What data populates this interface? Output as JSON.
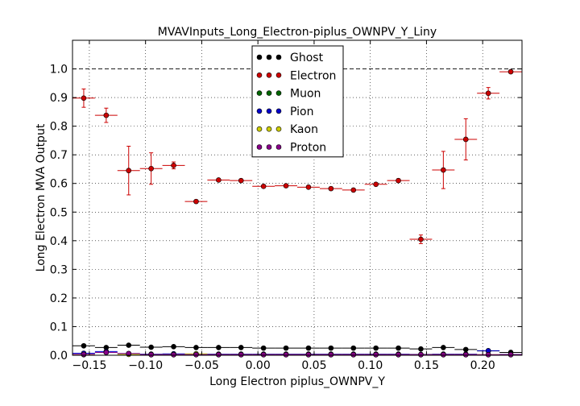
{
  "chart_data": {
    "type": "scatter",
    "title": "MVAVInputs_Long_Electron-piplus_OWNPV_Y_Liny",
    "xlabel": "Long Electron piplus_OWNPV_Y",
    "ylabel": "Long Electron MVA Output",
    "xlim": [
      -0.165,
      0.235
    ],
    "ylim": [
      0.0,
      1.1
    ],
    "xticks": [
      -0.15,
      -0.1,
      -0.05,
      0.0,
      0.05,
      0.1,
      0.15,
      0.2
    ],
    "xtick_labels": [
      "−0.15",
      "−0.10",
      "−0.05",
      "0.00",
      "0.05",
      "0.10",
      "0.15",
      "0.20"
    ],
    "yticks": [
      0.0,
      0.1,
      0.2,
      0.3,
      0.4,
      0.5,
      0.6,
      0.7,
      0.8,
      0.9,
      1.0
    ],
    "ytick_labels": [
      "0.0",
      "0.1",
      "0.2",
      "0.3",
      "0.4",
      "0.5",
      "0.6",
      "0.7",
      "0.8",
      "0.9",
      "1.0"
    ],
    "reference_line_y": 1.0,
    "grid": true,
    "legend_position": "top-center",
    "x": [
      -0.155,
      -0.135,
      -0.115,
      -0.095,
      -0.075,
      -0.055,
      -0.035,
      -0.015,
      0.005,
      0.025,
      0.045,
      0.065,
      0.085,
      0.105,
      0.125,
      0.145,
      0.165,
      0.185,
      0.205,
      0.225
    ],
    "x_half_width": 0.01,
    "series": [
      {
        "name": "Ghost",
        "color": "#000000",
        "values": [
          0.033,
          0.027,
          0.035,
          0.028,
          0.03,
          0.027,
          0.027,
          0.027,
          0.025,
          0.025,
          0.025,
          0.025,
          0.025,
          0.025,
          0.025,
          0.022,
          0.027,
          0.02,
          0.015,
          0.01
        ],
        "errors": [
          0.003,
          0.003,
          0.003,
          0.003,
          0.003,
          0.003,
          0.003,
          0.003,
          0.003,
          0.003,
          0.003,
          0.003,
          0.003,
          0.003,
          0.003,
          0.003,
          0.003,
          0.003,
          0.003,
          0.003
        ]
      },
      {
        "name": "Electron",
        "color": "#cc0000",
        "values": [
          0.898,
          0.838,
          0.645,
          0.652,
          0.663,
          0.537,
          0.612,
          0.61,
          0.59,
          0.592,
          0.587,
          0.582,
          0.577,
          0.597,
          0.61,
          0.405,
          0.647,
          0.754,
          0.915,
          0.99
        ],
        "errors": [
          0.032,
          0.025,
          0.085,
          0.055,
          0.012,
          0.005,
          0.005,
          0.005,
          0.005,
          0.005,
          0.005,
          0.005,
          0.005,
          0.005,
          0.006,
          0.015,
          0.065,
          0.072,
          0.02,
          0.005
        ]
      },
      {
        "name": "Muon",
        "color": "#006600",
        "values": [],
        "errors": []
      },
      {
        "name": "Pion",
        "color": "#0000cc",
        "values": [
          0.007,
          0.013,
          0.006,
          0.004,
          0.005,
          0.004,
          0.004,
          0.004,
          0.004,
          0.004,
          0.004,
          0.004,
          0.004,
          0.004,
          0.004,
          0.003,
          0.004,
          0.004,
          0.016,
          0.003
        ],
        "errors": [
          0.002,
          0.003,
          0.002,
          0.001,
          0.001,
          0.001,
          0.001,
          0.001,
          0.001,
          0.001,
          0.001,
          0.001,
          0.001,
          0.001,
          0.001,
          0.001,
          0.001,
          0.001,
          0.003,
          0.001
        ]
      },
      {
        "name": "Kaon",
        "color": "#cccc00",
        "values": [
          0.002,
          0.01,
          0.003,
          0.002,
          0.002,
          0.005,
          0.002,
          0.002,
          0.002,
          0.002,
          0.002,
          0.002,
          0.002,
          0.002,
          0.002,
          0.002,
          0.002,
          0.002,
          0.002,
          0.002
        ],
        "errors": [
          0.001,
          0.002,
          0.001,
          0.001,
          0.001,
          0.001,
          0.001,
          0.001,
          0.001,
          0.001,
          0.001,
          0.001,
          0.001,
          0.001,
          0.001,
          0.001,
          0.001,
          0.001,
          0.001,
          0.001
        ]
      },
      {
        "name": "Proton",
        "color": "#880088",
        "values": [
          0.003,
          0.01,
          0.006,
          0.002,
          0.002,
          0.002,
          0.002,
          0.002,
          0.002,
          0.002,
          0.002,
          0.002,
          0.002,
          0.002,
          0.002,
          0.002,
          0.002,
          0.002,
          0.002,
          0.002
        ],
        "errors": [
          0.001,
          0.002,
          0.001,
          0.001,
          0.001,
          0.001,
          0.001,
          0.001,
          0.001,
          0.001,
          0.001,
          0.001,
          0.001,
          0.001,
          0.001,
          0.001,
          0.001,
          0.001,
          0.001,
          0.001
        ]
      }
    ]
  }
}
